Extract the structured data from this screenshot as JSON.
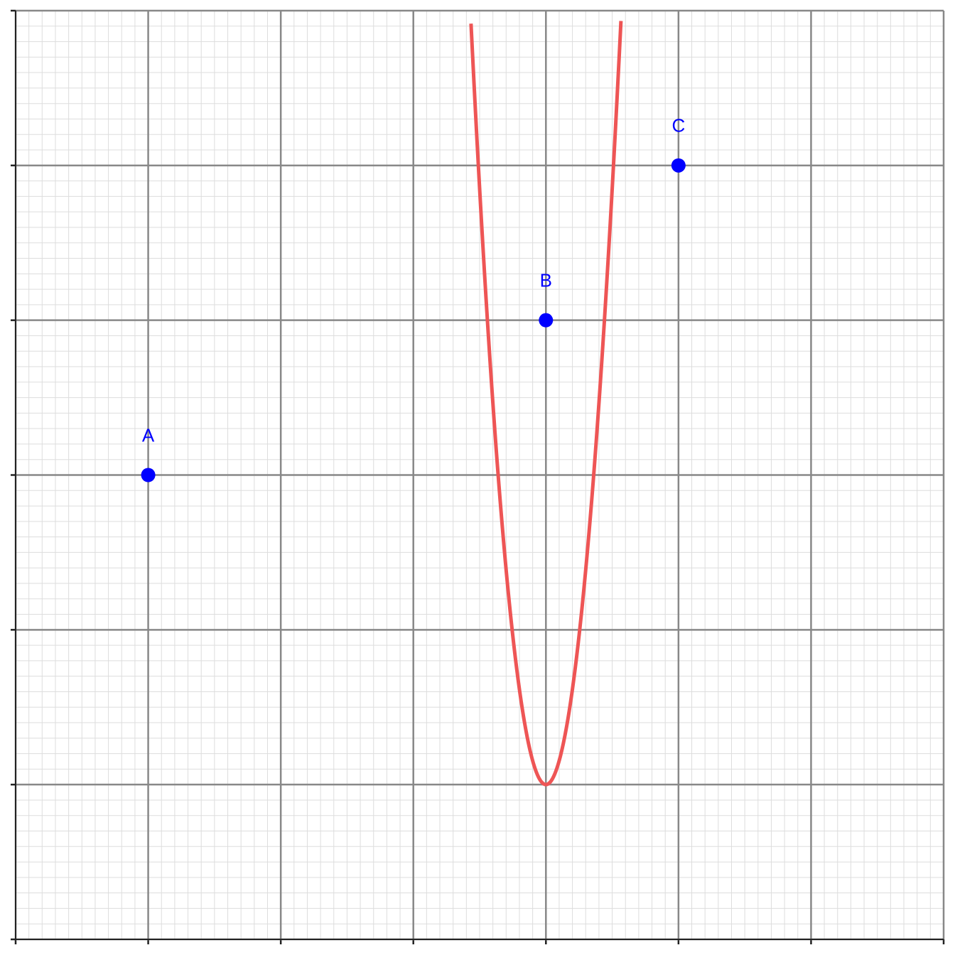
{
  "chart_data": {
    "type": "scatter",
    "xlim": [
      0,
      7
    ],
    "ylim": [
      0,
      6
    ],
    "xticks": [
      0,
      1,
      2,
      3,
      4,
      5,
      6,
      7
    ],
    "yticks": [
      0,
      1,
      2,
      3,
      4,
      5,
      6
    ],
    "grid": true,
    "minor_divisions": 10,
    "points": {
      "labels": [
        "A",
        "B",
        "C"
      ],
      "x": [
        1,
        4,
        5
      ],
      "y": [
        3,
        4,
        5
      ],
      "color": "#0000ff"
    },
    "curve": {
      "a": 15.4,
      "h": 4,
      "k": 1,
      "x_range": [
        3.435,
        4.566
      ],
      "color": "#ee5555"
    }
  }
}
